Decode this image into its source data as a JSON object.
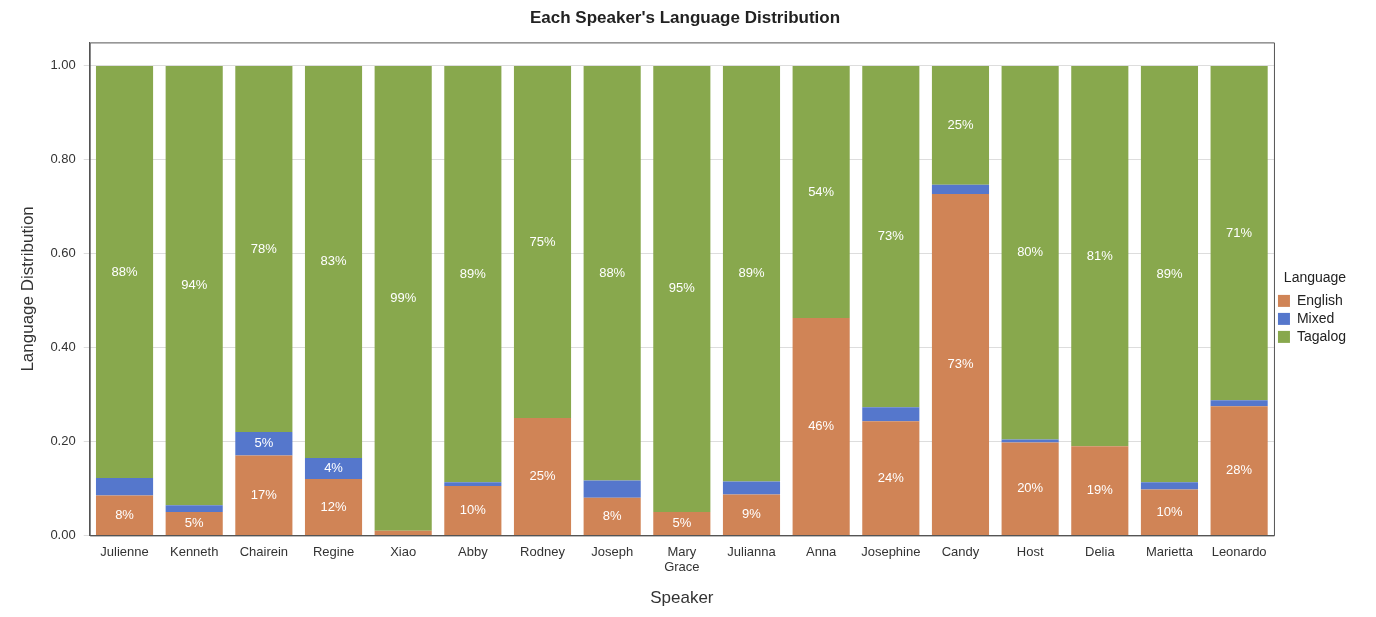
{
  "chart_data": {
    "type": "bar",
    "stacked": true,
    "title": "Each Speaker's Language Distribution",
    "xlabel": "Speaker",
    "ylabel": "Language Distribution",
    "legend_title": "Language",
    "legend": "right",
    "grid": "y",
    "categories": [
      "Julienne",
      "Kenneth",
      "Chairein",
      "Regine",
      "Xiao",
      "Abby",
      "Rodney",
      "Joseph",
      "Mary Grace",
      "Julianna",
      "Anna",
      "Josephine",
      "Candy",
      "Host",
      "Delia",
      "Marietta",
      "Leonardo"
    ],
    "ylim": [
      0,
      1.05
    ],
    "yticks": [
      {
        "value": 0,
        "label": "0.00"
      },
      {
        "value": 0.2,
        "label": "0.20"
      },
      {
        "value": 0.4,
        "label": "0.40"
      },
      {
        "value": 0.6,
        "label": "0.60"
      },
      {
        "value": 0.8,
        "label": "0.80"
      },
      {
        "value": 1,
        "label": "1.00"
      }
    ],
    "series": [
      {
        "name": "English",
        "color": "#d08456",
        "values": [
          0.085,
          0.05,
          0.17,
          0.12,
          0.01,
          0.105,
          0.25,
          0.08,
          0.05,
          0.087,
          0.463,
          0.243,
          0.727,
          0.198,
          0.19,
          0.098,
          0.275
        ],
        "value_labels": [
          "8%",
          "5%",
          "17%",
          "12%",
          null,
          "10%",
          "25%",
          "8%",
          "5%",
          "9%",
          "46%",
          "24%",
          "73%",
          "20%",
          "19%",
          "10%",
          "28%"
        ]
      },
      {
        "name": "Mixed",
        "color": "#5577cc",
        "values": [
          0.037,
          0.014,
          0.05,
          0.045,
          0,
          0.008,
          0,
          0.037,
          0,
          0.028,
          0,
          0.03,
          0.02,
          0.006,
          0,
          0.015,
          0.013
        ],
        "value_labels": [
          null,
          null,
          "5%",
          "4%",
          null,
          null,
          null,
          null,
          null,
          null,
          null,
          null,
          null,
          null,
          null,
          null,
          null
        ]
      },
      {
        "name": "Tagalog",
        "color": "#88a84d",
        "values": [
          0.878,
          0.936,
          0.78,
          0.835,
          0.99,
          0.887,
          0.75,
          0.883,
          0.95,
          0.885,
          0.537,
          0.727,
          0.253,
          0.796,
          0.81,
          0.887,
          0.712
        ],
        "value_labels": [
          "88%",
          "94%",
          "78%",
          "83%",
          "99%",
          "89%",
          "75%",
          "88%",
          "95%",
          "89%",
          "54%",
          "73%",
          "25%",
          "80%",
          "81%",
          "89%",
          "71%"
        ]
      }
    ]
  }
}
